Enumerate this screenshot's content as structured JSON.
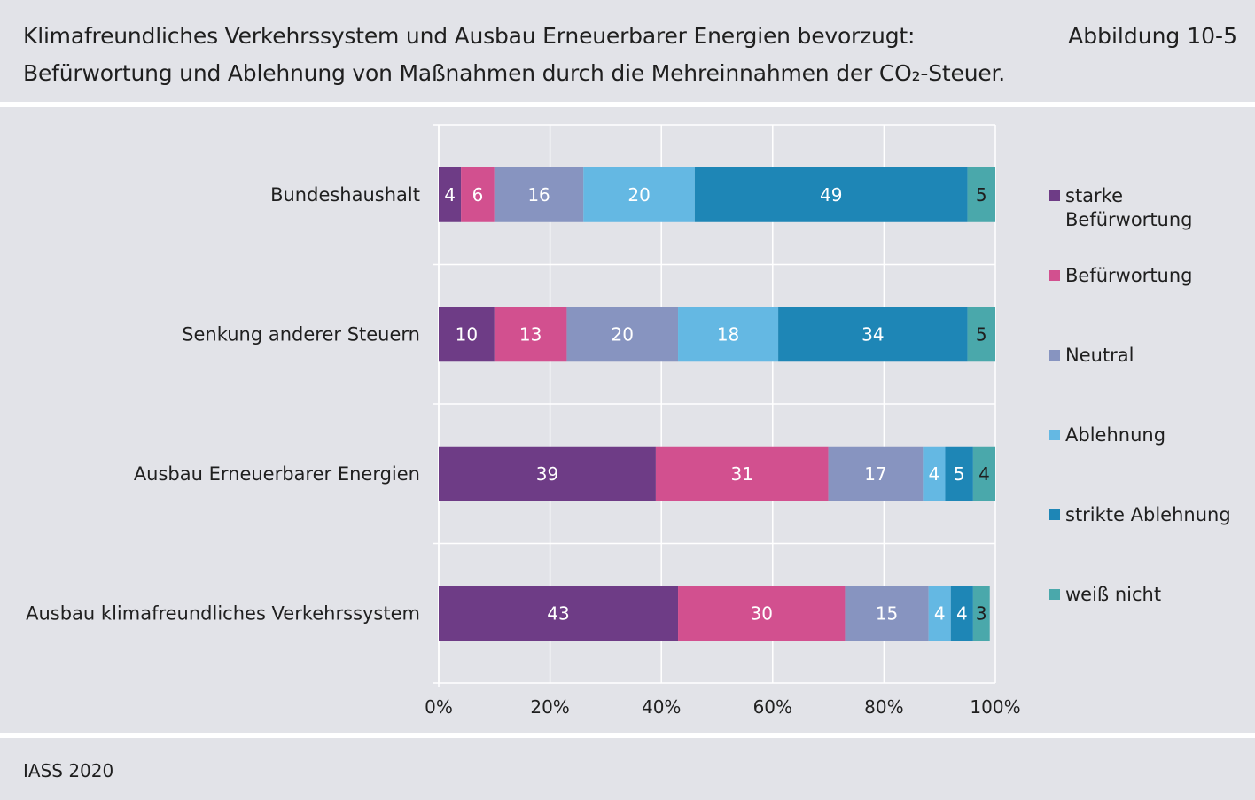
{
  "header": {
    "title_line1": "Klimafreundliches Verkehrssystem und Ausbau Erneuerbarer Energien bevorzugt:",
    "title_line2": "Befürwortung und Ablehnung von Maßnahmen durch die Mehreinnahmen der CO₂-Steuer.",
    "figure_label": "Abbildung 10-5"
  },
  "footer": {
    "source": "IASS 2020"
  },
  "chart_data": {
    "type": "bar",
    "orientation": "horizontal",
    "stacked": true,
    "categories": [
      "Bundeshaushalt",
      "Senkung anderer Steuern",
      "Ausbau Erneuerbarer Energien",
      "Ausbau klimafreundliches Verkehrssystem"
    ],
    "series": [
      {
        "name": "starke Befürwortung",
        "color": "#6e3c86",
        "values": [
          4,
          10,
          39,
          43
        ]
      },
      {
        "name": "Befürwortung",
        "color": "#d2508f",
        "values": [
          6,
          13,
          31,
          30
        ]
      },
      {
        "name": "Neutral",
        "color": "#8794c0",
        "values": [
          16,
          20,
          17,
          15
        ]
      },
      {
        "name": "Ablehnung",
        "color": "#64b8e3",
        "values": [
          20,
          18,
          4,
          4
        ]
      },
      {
        "name": "strikte Ablehnung",
        "color": "#1e86b6",
        "values": [
          49,
          34,
          5,
          4
        ]
      },
      {
        "name": "weiß nicht",
        "color": "#4aa8ab",
        "values": [
          5,
          5,
          4,
          3
        ]
      }
    ],
    "xlim": [
      0,
      100
    ],
    "x_ticks": [
      "0%",
      "20%",
      "40%",
      "60%",
      "80%",
      "100%"
    ],
    "grid": true,
    "legend_position": "right"
  }
}
